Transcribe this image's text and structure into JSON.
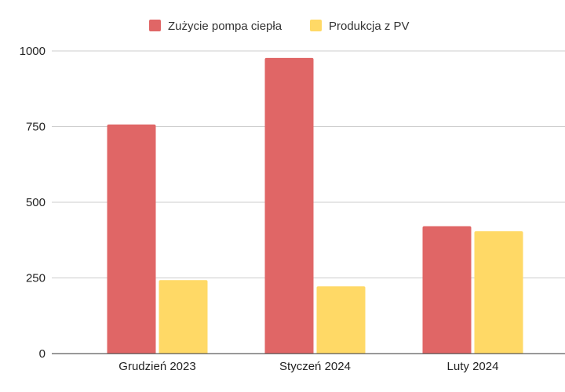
{
  "chart_data": {
    "type": "bar",
    "categories": [
      "Grudzień 2023",
      "Styczeń 2024",
      "Luty 2024"
    ],
    "series": [
      {
        "name": "Zużycie pompa ciepła",
        "values": [
          757,
          977,
          421
        ],
        "color": "#E06666"
      },
      {
        "name": "Produkcja z PV",
        "values": [
          243,
          222,
          404
        ],
        "color": "#FFD966"
      }
    ],
    "ylim": [
      0,
      1000
    ],
    "yticks": [
      0,
      250,
      500,
      750,
      1000
    ],
    "ytick_labels": [
      "0",
      "250",
      "500",
      "750",
      "1000"
    ],
    "title": "",
    "xlabel": "",
    "ylabel": "",
    "grid": true,
    "legend": "top-center",
    "gridline_color": "#CCCCCC",
    "axis_color": "#333333"
  }
}
